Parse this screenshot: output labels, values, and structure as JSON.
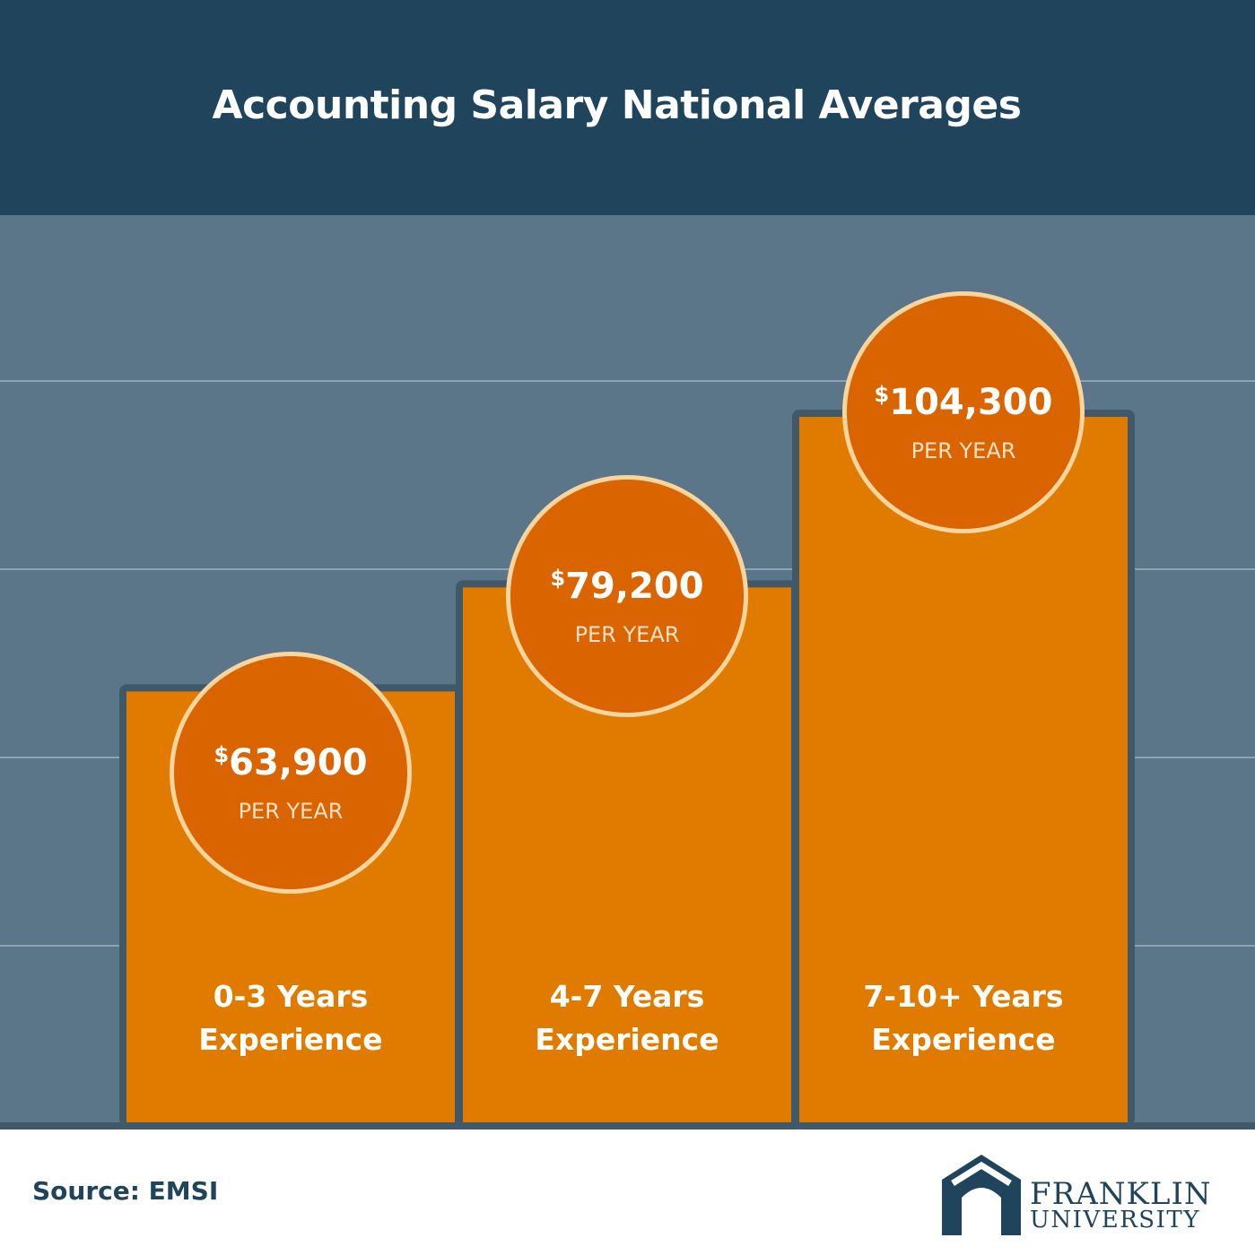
{
  "title": "Accounting Salary National Averages",
  "source": "Source: EMSI",
  "logo": {
    "line1": "FRANKLIN",
    "line2": "UNIVERSITY"
  },
  "colors": {
    "header": "#1f445c",
    "plot_background": "#5b7689",
    "bar": "#e07b00",
    "bubble": "#d96400",
    "bubble_ring": "#fbd59e"
  },
  "chart_data": {
    "type": "bar",
    "categories": [
      "0-3 Years Experience",
      "4-7 Years Experience",
      "7-10+ Years Experience"
    ],
    "category_lines": [
      [
        "0-3 Years",
        "Experience"
      ],
      [
        "4-7 Years",
        "Experience"
      ],
      [
        "7-10+ Years",
        "Experience"
      ]
    ],
    "values": [
      63900,
      79200,
      104300
    ],
    "value_labels": [
      "63,900",
      "79,200",
      "104,300"
    ],
    "currency_symbol": "$",
    "unit_label": "PER YEAR",
    "grid": true
  }
}
